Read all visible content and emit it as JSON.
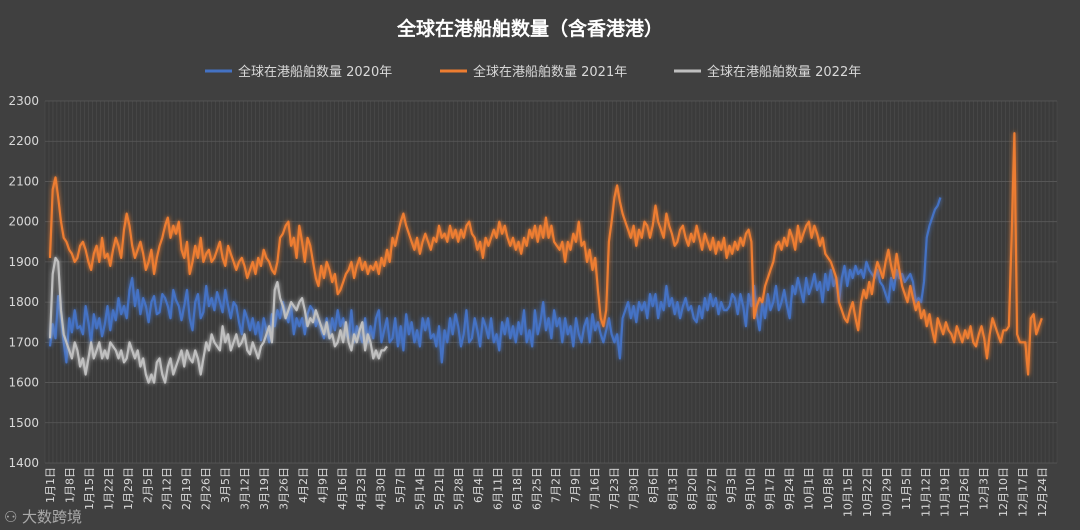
{
  "chart_data": {
    "type": "line",
    "title": "全球在港船舶数量（含香港港）",
    "ylim": [
      1400,
      2300
    ],
    "yticks": [
      1400,
      1500,
      1600,
      1700,
      1800,
      1900,
      2000,
      2100,
      2200,
      2300
    ],
    "grid": true,
    "legend_position": "top",
    "xlabels": [
      "1月1日",
      "1月8日",
      "1月15日",
      "1月22日",
      "1月29日",
      "2月5日",
      "2月12日",
      "2月19日",
      "2月26日",
      "3月5日",
      "3月12日",
      "3月19日",
      "3月26日",
      "4月2日",
      "4月9日",
      "4月16日",
      "4月23日",
      "4月30日",
      "5月7日",
      "5月14日",
      "5月21日",
      "5月28日",
      "6月4日",
      "6月11日",
      "6月18日",
      "6月25日",
      "7月2日",
      "7月9日",
      "7月16日",
      "7月23日",
      "7月30日",
      "8月6日",
      "8月13日",
      "8月20日",
      "8月27日",
      "9月3日",
      "9月10日",
      "9月17日",
      "9月24日",
      "10月1日",
      "10月8日",
      "10月15日",
      "10月22日",
      "10月29日",
      "11月5日",
      "11月12日",
      "11月19日",
      "11月26日",
      "12月3日",
      "12月10日",
      "12月17日",
      "12月24日"
    ],
    "series": [
      {
        "name": "全球在港船舶数量 2020年",
        "color": "#4472c4",
        "values": [
          1690,
          1745,
          1710,
          1815,
          1760,
          1700,
          1650,
          1760,
          1725,
          1780,
          1735,
          1740,
          1720,
          1790,
          1750,
          1700,
          1770,
          1735,
          1760,
          1715,
          1745,
          1790,
          1730,
          1780,
          1755,
          1810,
          1770,
          1790,
          1760,
          1830,
          1860,
          1790,
          1830,
          1770,
          1810,
          1790,
          1750,
          1800,
          1815,
          1770,
          1775,
          1820,
          1810,
          1790,
          1760,
          1830,
          1805,
          1790,
          1755,
          1790,
          1830,
          1760,
          1730,
          1800,
          1820,
          1760,
          1775,
          1840,
          1790,
          1810,
          1780,
          1825,
          1800,
          1775,
          1830,
          1790,
          1760,
          1800,
          1790,
          1750,
          1720,
          1780,
          1760,
          1730,
          1760,
          1720,
          1750,
          1705,
          1760,
          1730,
          1700,
          1770,
          1740,
          1780,
          1760,
          1800,
          1770,
          1750,
          1790,
          1720,
          1760,
          1740,
          1760,
          1720,
          1770,
          1790,
          1780,
          1740,
          1760,
          1730,
          1710,
          1760,
          1710,
          1760,
          1730,
          1780,
          1740,
          1760,
          1720,
          1710,
          1780,
          1700,
          1740,
          1720,
          1700,
          1760,
          1700,
          1740,
          1710,
          1760,
          1780,
          1700,
          1730,
          1760,
          1700,
          1710,
          1760,
          1690,
          1740,
          1680,
          1770,
          1720,
          1750,
          1700,
          1730,
          1690,
          1760,
          1730,
          1760,
          1710,
          1720,
          1690,
          1740,
          1650,
          1730,
          1700,
          1760,
          1720,
          1770,
          1740,
          1690,
          1720,
          1780,
          1700,
          1710,
          1760,
          1730,
          1690,
          1760,
          1740,
          1710,
          1760,
          1700,
          1720,
          1680,
          1750,
          1720,
          1760,
          1710,
          1740,
          1700,
          1750,
          1720,
          1780,
          1700,
          1730,
          1690,
          1780,
          1720,
          1750,
          1800,
          1730,
          1760,
          1710,
          1780,
          1740,
          1760,
          1700,
          1760,
          1720,
          1740,
          1690,
          1760,
          1720,
          1700,
          1740,
          1760,
          1700,
          1770,
          1730,
          1750,
          1720,
          1700,
          1730,
          1760,
          1720,
          1700,
          1720,
          1660,
          1760,
          1780,
          1800,
          1760,
          1790,
          1750,
          1800,
          1780,
          1800,
          1760,
          1820,
          1790,
          1820,
          1760,
          1800,
          1780,
          1840,
          1790,
          1810,
          1770,
          1800,
          1760,
          1790,
          1810,
          1780,
          1790,
          1760,
          1750,
          1790,
          1760,
          1810,
          1780,
          1820,
          1790,
          1810,
          1770,
          1800,
          1780,
          1780,
          1790,
          1820,
          1810,
          1770,
          1820,
          1790,
          1740,
          1820,
          1790,
          1840,
          1770,
          1730,
          1800,
          1760,
          1820,
          1780,
          1800,
          1840,
          1780,
          1800,
          1830,
          1790,
          1760,
          1840,
          1820,
          1860,
          1830,
          1800,
          1860,
          1820,
          1840,
          1870,
          1830,
          1850,
          1800,
          1870,
          1830,
          1880,
          1840,
          1860,
          1800,
          1860,
          1890,
          1840,
          1880,
          1860,
          1890,
          1870,
          1880,
          1860,
          1900,
          1880,
          1870,
          1860,
          1880,
          1850,
          1840,
          1820,
          1800,
          1860,
          1830,
          1880,
          1860,
          1870,
          1850,
          1860,
          1870,
          1850,
          1800,
          1810,
          1800,
          1850,
          1960,
          1990,
          2010,
          2030,
          2040,
          2060
        ]
      },
      {
        "name": "全球在港船舶数量 2021年",
        "color": "#ed7d31",
        "values": [
          1910,
          2080,
          2110,
          2060,
          2000,
          1960,
          1950,
          1930,
          1920,
          1900,
          1910,
          1940,
          1950,
          1930,
          1900,
          1880,
          1920,
          1940,
          1900,
          1960,
          1910,
          1920,
          1890,
          1930,
          1960,
          1940,
          1910,
          1980,
          2020,
          1990,
          1940,
          1910,
          1930,
          1950,
          1920,
          1880,
          1900,
          1930,
          1870,
          1910,
          1940,
          1960,
          1990,
          2010,
          1960,
          1990,
          1970,
          2000,
          1930,
          1910,
          1950,
          1870,
          1900,
          1940,
          1910,
          1960,
          1900,
          1920,
          1930,
          1900,
          1910,
          1930,
          1950,
          1910,
          1890,
          1940,
          1920,
          1900,
          1880,
          1900,
          1910,
          1890,
          1860,
          1880,
          1900,
          1870,
          1910,
          1890,
          1930,
          1910,
          1900,
          1880,
          1870,
          1900,
          1960,
          1970,
          1990,
          2000,
          1940,
          1960,
          1910,
          1990,
          1950,
          1900,
          1960,
          1940,
          1900,
          1860,
          1840,
          1890,
          1860,
          1900,
          1880,
          1850,
          1870,
          1820,
          1830,
          1850,
          1870,
          1880,
          1900,
          1860,
          1890,
          1910,
          1880,
          1900,
          1870,
          1890,
          1880,
          1900,
          1870,
          1910,
          1890,
          1930,
          1900,
          1960,
          1940,
          1970,
          2000,
          2020,
          1990,
          1970,
          1950,
          1930,
          1960,
          1920,
          1950,
          1970,
          1950,
          1930,
          1960,
          1950,
          1990,
          1960,
          1970,
          1950,
          1990,
          1960,
          1980,
          1950,
          1980,
          1960,
          1990,
          2000,
          1970,
          1960,
          1930,
          1950,
          1910,
          1960,
          1940,
          1960,
          1980,
          1960,
          2000,
          1970,
          1990,
          1960,
          1940,
          1960,
          1930,
          1950,
          1920,
          1960,
          1940,
          1980,
          1960,
          1990,
          1950,
          1990,
          1960,
          2010,
          1960,
          1990,
          1950,
          1940,
          1930,
          1950,
          1900,
          1950,
          1930,
          1970,
          1950,
          2000,
          1940,
          1950,
          1900,
          1930,
          1880,
          1910,
          1830,
          1760,
          1740,
          1780,
          1950,
          2000,
          2060,
          2090,
          2050,
          2020,
          2000,
          1980,
          1960,
          1990,
          1940,
          1980,
          1960,
          2000,
          1990,
          1960,
          1990,
          2040,
          2000,
          1980,
          1960,
          2020,
          1990,
          1970,
          1940,
          1950,
          1980,
          1990,
          1960,
          1940,
          1970,
          1950,
          1990,
          1960,
          1930,
          1970,
          1950,
          1930,
          1960,
          1920,
          1950,
          1930,
          1960,
          1910,
          1940,
          1920,
          1950,
          1930,
          1960,
          1940,
          1970,
          1980,
          1950,
          1760,
          1790,
          1810,
          1800,
          1840,
          1860,
          1880,
          1900,
          1940,
          1950,
          1930,
          1960,
          1940,
          1980,
          1960,
          1930,
          1990,
          1950,
          1970,
          1990,
          2000,
          1960,
          1990,
          1970,
          1940,
          1960,
          1920,
          1910,
          1900,
          1880,
          1860,
          1800,
          1780,
          1760,
          1750,
          1780,
          1800,
          1760,
          1730,
          1800,
          1830,
          1810,
          1850,
          1820,
          1870,
          1900,
          1880,
          1860,
          1900,
          1930,
          1890,
          1860,
          1920,
          1880,
          1840,
          1820,
          1800,
          1840,
          1810,
          1780,
          1800,
          1760,
          1780,
          1740,
          1770,
          1730,
          1700,
          1760,
          1740,
          1720,
          1750,
          1730,
          1720,
          1700,
          1740,
          1720,
          1700,
          1730,
          1710,
          1740,
          1700,
          1690,
          1720,
          1740,
          1710,
          1660,
          1720,
          1760,
          1740,
          1720,
          1700,
          1730,
          1730,
          1740,
          1960,
          2220,
          1720,
          1700,
          1700,
          1700,
          1620,
          1760,
          1770,
          1720,
          1740,
          1760
        ]
      },
      {
        "name": "全球在港船舶数量 2022年",
        "color": "#bfbfbf",
        "values": [
          1710,
          1870,
          1910,
          1900,
          1780,
          1720,
          1700,
          1680,
          1660,
          1700,
          1680,
          1640,
          1660,
          1620,
          1660,
          1700,
          1660,
          1680,
          1700,
          1660,
          1680,
          1660,
          1700,
          1690,
          1680,
          1660,
          1680,
          1650,
          1660,
          1700,
          1680,
          1660,
          1680,
          1640,
          1660,
          1620,
          1600,
          1620,
          1600,
          1650,
          1660,
          1620,
          1600,
          1640,
          1660,
          1620,
          1640,
          1660,
          1680,
          1640,
          1680,
          1660,
          1650,
          1680,
          1660,
          1620,
          1660,
          1700,
          1680,
          1720,
          1700,
          1690,
          1680,
          1740,
          1700,
          1720,
          1680,
          1700,
          1720,
          1690,
          1700,
          1720,
          1680,
          1670,
          1700,
          1680,
          1660,
          1690,
          1700,
          1720,
          1740,
          1700,
          1830,
          1850,
          1810,
          1790,
          1760,
          1780,
          1800,
          1790,
          1780,
          1800,
          1810,
          1780,
          1740,
          1760,
          1750,
          1780,
          1760,
          1740,
          1720,
          1750,
          1710,
          1720,
          1690,
          1700,
          1730,
          1700,
          1750,
          1700,
          1680,
          1720,
          1700,
          1730,
          1750,
          1680,
          1720,
          1700,
          1660,
          1680,
          1660,
          1680,
          1680,
          1690
        ]
      }
    ]
  },
  "watermark": "大数跨境"
}
